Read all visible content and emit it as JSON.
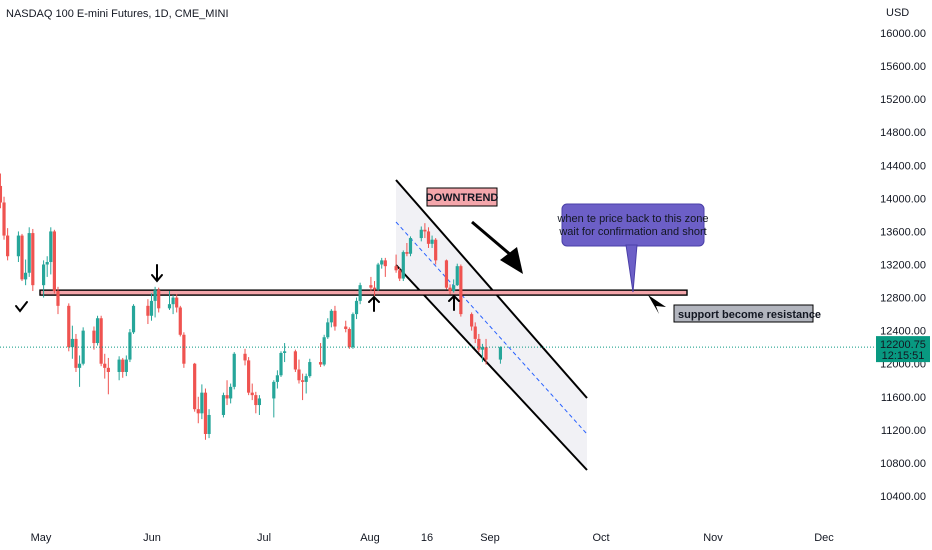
{
  "title": "NASDAQ 100 E-mini Futures, 1D, CME_MINI",
  "currency": "USD",
  "price_badge": {
    "value": "12200.75",
    "countdown": "12:15:51",
    "color": "#089981"
  },
  "colors": {
    "up": "#26a69a",
    "down": "#ef5350",
    "zone": "#f4a6ab",
    "channel": "#000000",
    "midline": "#2962ff",
    "callout": "#6c5fc7"
  },
  "annotations": {
    "downtrend_label": "DOWNTREND",
    "callout_line1": "when te price back to this zone",
    "callout_line2": "wait for confirmation and short",
    "resistance_label": "support become resistance"
  },
  "chart_data": {
    "type": "candlestick",
    "title": "NASDAQ 100 E-mini Futures, 1D, CME_MINI",
    "x_ticks": [
      "May",
      "Jun",
      "Jul",
      "Aug",
      "16",
      "Sep",
      "Oct",
      "Nov",
      "Dec"
    ],
    "y_ticks": [
      10400,
      10800,
      11200,
      11600,
      12000,
      12400,
      12800,
      13200,
      13600,
      14000,
      14400,
      14800,
      15200,
      15600,
      16000
    ],
    "ylim": [
      10250,
      16200
    ],
    "last_price": 12200.75,
    "resistance_zone": [
      12830,
      12890
    ],
    "series": [
      {
        "date": "2022-04-20",
        "o": 14150,
        "h": 14300,
        "l": 13880,
        "c": 13950
      },
      {
        "date": "2022-04-21",
        "o": 13950,
        "h": 14020,
        "l": 13500,
        "c": 13550
      },
      {
        "date": "2022-04-22",
        "o": 13550,
        "h": 13640,
        "l": 13250,
        "c": 13300
      },
      {
        "date": "2022-04-25",
        "o": 13300,
        "h": 13600,
        "l": 13230,
        "c": 13550
      },
      {
        "date": "2022-04-26",
        "o": 13550,
        "h": 13570,
        "l": 13000,
        "c": 13020
      },
      {
        "date": "2022-04-27",
        "o": 13020,
        "h": 13260,
        "l": 12950,
        "c": 13100
      },
      {
        "date": "2022-04-28",
        "o": 13100,
        "h": 13650,
        "l": 13050,
        "c": 13580
      },
      {
        "date": "2022-04-29",
        "o": 13580,
        "h": 13630,
        "l": 12880,
        "c": 12950
      },
      {
        "date": "2022-05-02",
        "o": 12950,
        "h": 13250,
        "l": 12800,
        "c": 13200
      },
      {
        "date": "2022-05-03",
        "o": 13200,
        "h": 13300,
        "l": 13050,
        "c": 13230
      },
      {
        "date": "2022-05-04",
        "o": 13230,
        "h": 13650,
        "l": 13080,
        "c": 13600
      },
      {
        "date": "2022-05-05",
        "o": 13600,
        "h": 13620,
        "l": 12850,
        "c": 12880
      },
      {
        "date": "2022-05-06",
        "o": 12880,
        "h": 12930,
        "l": 12600,
        "c": 12700
      },
      {
        "date": "2022-05-09",
        "o": 12700,
        "h": 12730,
        "l": 12150,
        "c": 12200
      },
      {
        "date": "2022-05-10",
        "o": 12200,
        "h": 12460,
        "l": 12060,
        "c": 12300
      },
      {
        "date": "2022-05-11",
        "o": 12300,
        "h": 12360,
        "l": 11900,
        "c": 11950
      },
      {
        "date": "2022-05-12",
        "o": 11950,
        "h": 12100,
        "l": 11720,
        "c": 12000
      },
      {
        "date": "2022-05-13",
        "o": 12000,
        "h": 12440,
        "l": 11980,
        "c": 12400
      },
      {
        "date": "2022-05-16",
        "o": 12400,
        "h": 12450,
        "l": 12170,
        "c": 12250
      },
      {
        "date": "2022-05-17",
        "o": 12250,
        "h": 12580,
        "l": 12220,
        "c": 12550
      },
      {
        "date": "2022-05-18",
        "o": 12550,
        "h": 12580,
        "l": 11970,
        "c": 12000
      },
      {
        "date": "2022-05-19",
        "o": 12000,
        "h": 12120,
        "l": 11820,
        "c": 11950
      },
      {
        "date": "2022-05-20",
        "o": 11950,
        "h": 12070,
        "l": 11630,
        "c": 11900
      },
      {
        "date": "2022-05-23",
        "o": 11900,
        "h": 12090,
        "l": 11800,
        "c": 12050
      },
      {
        "date": "2022-05-24",
        "o": 12050,
        "h": 12070,
        "l": 11830,
        "c": 11900
      },
      {
        "date": "2022-05-25",
        "o": 11900,
        "h": 12100,
        "l": 11850,
        "c": 12050
      },
      {
        "date": "2022-05-26",
        "o": 12050,
        "h": 12420,
        "l": 12020,
        "c": 12380
      },
      {
        "date": "2022-05-27",
        "o": 12380,
        "h": 12720,
        "l": 12360,
        "c": 12700
      },
      {
        "date": "2022-05-31",
        "o": 12700,
        "h": 12780,
        "l": 12480,
        "c": 12580
      },
      {
        "date": "2022-06-01",
        "o": 12580,
        "h": 12850,
        "l": 12520,
        "c": 12760
      },
      {
        "date": "2022-06-02",
        "o": 12760,
        "h": 12930,
        "l": 12560,
        "c": 12890
      },
      {
        "date": "2022-06-03",
        "o": 12890,
        "h": 12920,
        "l": 12620,
        "c": 12670
      },
      {
        "date": "2022-06-06",
        "o": 12670,
        "h": 12880,
        "l": 12650,
        "c": 12720
      },
      {
        "date": "2022-06-07",
        "o": 12720,
        "h": 12830,
        "l": 12600,
        "c": 12800
      },
      {
        "date": "2022-06-08",
        "o": 12800,
        "h": 12840,
        "l": 12620,
        "c": 12680
      },
      {
        "date": "2022-06-09",
        "o": 12680,
        "h": 12700,
        "l": 12330,
        "c": 12350
      },
      {
        "date": "2022-06-10",
        "o": 12350,
        "h": 12380,
        "l": 11950,
        "c": 12000
      },
      {
        "date": "2022-06-13",
        "o": 12000,
        "h": 12010,
        "l": 11420,
        "c": 11450
      },
      {
        "date": "2022-06-14",
        "o": 11450,
        "h": 11600,
        "l": 11280,
        "c": 11400
      },
      {
        "date": "2022-06-15",
        "o": 11400,
        "h": 11750,
        "l": 11330,
        "c": 11650
      },
      {
        "date": "2022-06-16",
        "o": 11650,
        "h": 11700,
        "l": 11080,
        "c": 11150
      },
      {
        "date": "2022-06-17",
        "o": 11150,
        "h": 11450,
        "l": 11100,
        "c": 11380
      },
      {
        "date": "2022-06-21",
        "o": 11380,
        "h": 11650,
        "l": 11350,
        "c": 11620
      },
      {
        "date": "2022-06-22",
        "o": 11620,
        "h": 11800,
        "l": 11500,
        "c": 11580
      },
      {
        "date": "2022-06-23",
        "o": 11580,
        "h": 11760,
        "l": 11520,
        "c": 11720
      },
      {
        "date": "2022-06-24",
        "o": 11720,
        "h": 12140,
        "l": 11690,
        "c": 12120
      },
      {
        "date": "2022-06-27",
        "o": 12120,
        "h": 12180,
        "l": 11980,
        "c": 12040
      },
      {
        "date": "2022-06-28",
        "o": 12040,
        "h": 12080,
        "l": 11620,
        "c": 11650
      },
      {
        "date": "2022-06-29",
        "o": 11650,
        "h": 11760,
        "l": 11560,
        "c": 11620
      },
      {
        "date": "2022-06-30",
        "o": 11620,
        "h": 11660,
        "l": 11400,
        "c": 11500
      },
      {
        "date": "2022-07-01",
        "o": 11500,
        "h": 11620,
        "l": 11380,
        "c": 11580
      },
      {
        "date": "2022-07-05",
        "o": 11580,
        "h": 11800,
        "l": 11350,
        "c": 11780
      },
      {
        "date": "2022-07-06",
        "o": 11780,
        "h": 11920,
        "l": 11700,
        "c": 11860
      },
      {
        "date": "2022-07-07",
        "o": 11860,
        "h": 12150,
        "l": 11840,
        "c": 12130
      },
      {
        "date": "2022-07-08",
        "o": 12130,
        "h": 12250,
        "l": 12020,
        "c": 12150
      },
      {
        "date": "2022-07-11",
        "o": 12150,
        "h": 12170,
        "l": 11900,
        "c": 11930
      },
      {
        "date": "2022-07-12",
        "o": 11930,
        "h": 12050,
        "l": 11760,
        "c": 11800
      },
      {
        "date": "2022-07-13",
        "o": 11800,
        "h": 11880,
        "l": 11560,
        "c": 11780
      },
      {
        "date": "2022-07-14",
        "o": 11780,
        "h": 11880,
        "l": 11640,
        "c": 11850
      },
      {
        "date": "2022-07-15",
        "o": 11850,
        "h": 12060,
        "l": 11830,
        "c": 12020
      },
      {
        "date": "2022-07-18",
        "o": 12020,
        "h": 12250,
        "l": 11960,
        "c": 11990
      },
      {
        "date": "2022-07-19",
        "o": 11990,
        "h": 12350,
        "l": 11970,
        "c": 12320
      },
      {
        "date": "2022-07-20",
        "o": 12320,
        "h": 12550,
        "l": 12300,
        "c": 12500
      },
      {
        "date": "2022-07-21",
        "o": 12500,
        "h": 12660,
        "l": 12440,
        "c": 12640
      },
      {
        "date": "2022-07-22",
        "o": 12640,
        "h": 12700,
        "l": 12400,
        "c": 12450
      },
      {
        "date": "2022-07-25",
        "o": 12450,
        "h": 12520,
        "l": 12380,
        "c": 12420
      },
      {
        "date": "2022-07-26",
        "o": 12420,
        "h": 12440,
        "l": 12180,
        "c": 12200
      },
      {
        "date": "2022-07-27",
        "o": 12200,
        "h": 12620,
        "l": 12180,
        "c": 12600
      },
      {
        "date": "2022-07-28",
        "o": 12600,
        "h": 12800,
        "l": 12540,
        "c": 12760
      },
      {
        "date": "2022-07-29",
        "o": 12760,
        "h": 12980,
        "l": 12720,
        "c": 12950
      },
      {
        "date": "2022-08-01",
        "o": 12950,
        "h": 13050,
        "l": 12880,
        "c": 12920
      },
      {
        "date": "2022-08-02",
        "o": 12920,
        "h": 13000,
        "l": 12820,
        "c": 12900
      },
      {
        "date": "2022-08-03",
        "o": 12900,
        "h": 13220,
        "l": 12880,
        "c": 13200
      },
      {
        "date": "2022-08-04",
        "o": 13200,
        "h": 13280,
        "l": 13150,
        "c": 13250
      },
      {
        "date": "2022-08-05",
        "o": 13250,
        "h": 13280,
        "l": 13050,
        "c": 13180
      },
      {
        "date": "2022-08-08",
        "o": 13180,
        "h": 13320,
        "l": 13100,
        "c": 13130
      },
      {
        "date": "2022-08-09",
        "o": 13130,
        "h": 13160,
        "l": 13000,
        "c": 13030
      },
      {
        "date": "2022-08-10",
        "o": 13030,
        "h": 13370,
        "l": 13000,
        "c": 13350
      },
      {
        "date": "2022-08-11",
        "o": 13350,
        "h": 13460,
        "l": 13300,
        "c": 13330
      },
      {
        "date": "2022-08-12",
        "o": 13330,
        "h": 13540,
        "l": 13300,
        "c": 13520
      },
      {
        "date": "2022-08-15",
        "o": 13520,
        "h": 13660,
        "l": 13480,
        "c": 13620
      },
      {
        "date": "2022-08-16",
        "o": 13620,
        "h": 13700,
        "l": 13520,
        "c": 13600
      },
      {
        "date": "2022-08-17",
        "o": 13600,
        "h": 13650,
        "l": 13400,
        "c": 13450
      },
      {
        "date": "2022-08-18",
        "o": 13450,
        "h": 13550,
        "l": 13400,
        "c": 13500
      },
      {
        "date": "2022-08-19",
        "o": 13500,
        "h": 13520,
        "l": 13200,
        "c": 13250
      },
      {
        "date": "2022-08-22",
        "o": 13250,
        "h": 13260,
        "l": 12900,
        "c": 12920
      },
      {
        "date": "2022-08-23",
        "o": 12920,
        "h": 12960,
        "l": 12840,
        "c": 12880
      },
      {
        "date": "2022-08-24",
        "o": 12880,
        "h": 13020,
        "l": 12860,
        "c": 12950
      },
      {
        "date": "2022-08-25",
        "o": 12950,
        "h": 13210,
        "l": 12940,
        "c": 13180
      },
      {
        "date": "2022-08-26",
        "o": 13180,
        "h": 13200,
        "l": 12570,
        "c": 12600
      },
      {
        "date": "2022-08-29",
        "o": 12600,
        "h": 12620,
        "l": 12400,
        "c": 12450
      },
      {
        "date": "2022-08-30",
        "o": 12450,
        "h": 12500,
        "l": 12250,
        "c": 12300
      },
      {
        "date": "2022-08-31",
        "o": 12300,
        "h": 12360,
        "l": 12140,
        "c": 12170
      },
      {
        "date": "2022-09-01",
        "o": 12170,
        "h": 12240,
        "l": 12020,
        "c": 12200
      },
      {
        "date": "2022-09-02",
        "o": 12200,
        "h": 12300,
        "l": 11990,
        "c": 12050
      },
      {
        "date": "2022-09-06",
        "o": 12050,
        "h": 12210,
        "l": 12000,
        "c": 12200
      }
    ]
  }
}
